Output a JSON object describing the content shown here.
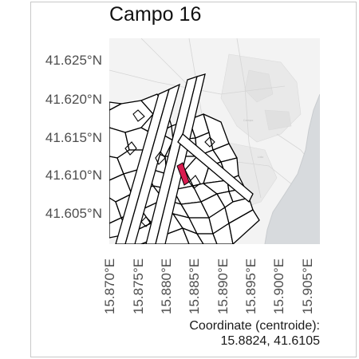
{
  "title": "Campo 16",
  "axes": {
    "y_ticks": [
      "41.625°N",
      "41.620°N",
      "41.615°N",
      "41.610°N",
      "41.605°N"
    ],
    "x_ticks": [
      "15.870°E",
      "15.875°E",
      "15.880°E",
      "15.885°E",
      "15.890°E",
      "15.895°E",
      "15.900°E",
      "15.905°E"
    ]
  },
  "caption": {
    "label": "Coordinate (centroide):",
    "value": "15.8824, 41.6105"
  },
  "colors": {
    "highlight": "#d81b4f",
    "sea": "#d7dadd",
    "land": "#f2f2f2",
    "parcel_outline": "#000000"
  }
}
